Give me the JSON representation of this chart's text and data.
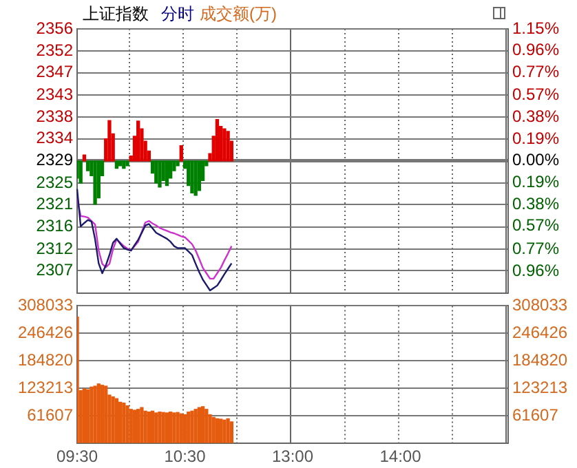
{
  "chart_data": [
    {
      "type": "line",
      "title": "上证指数",
      "subtitle": "分时",
      "annotations": [
        "成交额(万)"
      ],
      "marker": "none",
      "grid": true,
      "tick_labels": "y",
      "categories": [
        null,
        null,
        null,
        null,
        null,
        null,
        null,
        null,
        null,
        null,
        null,
        null,
        null,
        null,
        null,
        null,
        null,
        null,
        null,
        null,
        null,
        null,
        null,
        null,
        null,
        null,
        null,
        null,
        null,
        null,
        null,
        null,
        null,
        null,
        null,
        null,
        null,
        null,
        null,
        null,
        null,
        null,
        null,
        null,
        null,
        null,
        null,
        null,
        null,
        null,
        null,
        null,
        null,
        null,
        null,
        null,
        null,
        null,
        null,
        null,
        null,
        null,
        null,
        null,
        null,
        null,
        null,
        null,
        null,
        null,
        null,
        null,
        null,
        null,
        null,
        null,
        null,
        null,
        null,
        null,
        null,
        null,
        null,
        null,
        null,
        null,
        null,
        null,
        null,
        null,
        null,
        null,
        null,
        null,
        null,
        null,
        null,
        null,
        null,
        null,
        null,
        null,
        null,
        null,
        null,
        null,
        null,
        null,
        null,
        null,
        null,
        null,
        null,
        null,
        null,
        null,
        null,
        null,
        null,
        null,
        null
      ],
      "ylim": [
        2302.6,
        2356.2
      ],
      "yticks": [
        {
          "value": 2356.2,
          "label": "2356"
        },
        {
          "value": 2351.7,
          "label": "2352"
        },
        {
          "value": 2347.3,
          "label": "2347"
        },
        {
          "value": 2342.8,
          "label": "2343"
        },
        {
          "value": 2338.3,
          "label": "2338"
        },
        {
          "value": 2333.9,
          "label": "2334"
        },
        {
          "value": 2329.4,
          "label": "2329"
        },
        {
          "value": 2324.9,
          "label": "2325"
        },
        {
          "value": 2320.5,
          "label": "2321"
        },
        {
          "value": 2316.0,
          "label": "2316"
        },
        {
          "value": 2311.5,
          "label": "2312"
        },
        {
          "value": 2307.1,
          "label": "2307"
        }
      ],
      "y2lim": [
        -1.15,
        1.15
      ],
      "y2ticks": [
        {
          "value": 1.15,
          "label": "1.15%"
        },
        {
          "value": 0.96,
          "label": "0.96%"
        },
        {
          "value": 0.77,
          "label": "0.77%"
        },
        {
          "value": 0.57,
          "label": "0.57%"
        },
        {
          "value": 0.38,
          "label": "0.38%"
        },
        {
          "value": 0.19,
          "label": "0.19%"
        },
        {
          "value": 0,
          "label": "0.00%"
        },
        {
          "value": -0.19,
          "label": "0.19%"
        },
        {
          "value": -0.38,
          "label": "0.38%"
        },
        {
          "value": -0.57,
          "label": "0.57%"
        },
        {
          "value": -0.77,
          "label": "0.77%"
        },
        {
          "value": -0.96,
          "label": "0.96%"
        }
      ],
      "series": [
        {
          "type": "bar",
          "base": [
            2329.4,
            2329.4,
            2329.4,
            2329.4,
            2329.4,
            2329.4,
            2329.4,
            2329.4,
            2329.4,
            2329.4,
            2329.4,
            2329.4,
            2329.4,
            2329.4,
            2329.4,
            2329.4,
            2329.4,
            2329.4,
            2329.4,
            2329.4,
            2329.4,
            2329.4,
            2329.4,
            2329.4,
            2329.4,
            2329.4,
            2329.4,
            2329.4,
            2329.4,
            2329.4,
            2329.4,
            2329.4,
            2329.4,
            2329.4,
            2329.4,
            2329.4,
            2329.4,
            2329.4,
            2329.4,
            2329.4,
            2329.4,
            2329.4,
            2329.4,
            2329.4,
            null,
            null,
            null,
            null,
            null,
            null,
            null,
            null,
            null,
            null,
            null,
            null,
            null,
            null,
            null,
            null,
            null,
            null,
            null,
            null,
            null,
            null,
            null,
            null,
            null,
            null,
            null,
            null,
            null,
            null,
            null,
            null,
            null,
            null,
            null,
            null,
            null,
            null,
            null,
            null,
            null,
            null,
            null,
            null,
            null,
            null,
            null,
            null,
            null,
            null,
            null,
            null,
            null,
            null,
            null,
            null,
            null,
            null,
            null,
            null,
            null,
            null,
            null,
            null,
            null,
            null,
            null,
            null,
            null,
            null,
            null,
            null,
            null,
            null,
            null,
            null,
            null
          ],
          "values": [
            -3.5,
            -4.5,
            1.2,
            -2.0,
            -3.0,
            -8.8,
            -7.5,
            -3.0,
            4.5,
            8.2,
            5.5,
            -1.5,
            -1.0,
            -1.5,
            -1.0,
            1.0,
            5.0,
            8.1,
            6.5,
            4.0,
            2.0,
            -2.5,
            -4.5,
            -5.3,
            -4.0,
            -5.0,
            -3.5,
            -2.0,
            -1.0,
            3.1,
            -1.5,
            -5.0,
            -6.5,
            -7.0,
            -6.0,
            -4.0,
            -1.0,
            1.5,
            5.0,
            8.4,
            7.0,
            6.5,
            6.0,
            4.0,
            null,
            null,
            null,
            null,
            null,
            null,
            null,
            null,
            null,
            null,
            null,
            null,
            null,
            null,
            null,
            null,
            null,
            null,
            null,
            null,
            null,
            null,
            null,
            null,
            null,
            null,
            null,
            null,
            null,
            null,
            null,
            null,
            null,
            null,
            null,
            null,
            null,
            null,
            null,
            null,
            null,
            null,
            null,
            null,
            null,
            null,
            null,
            null,
            null,
            null,
            null,
            null,
            null,
            null,
            null,
            null,
            null,
            null,
            null,
            null,
            null,
            null,
            null,
            null,
            null,
            null,
            null,
            null,
            null,
            null,
            null,
            null,
            null,
            null,
            null,
            null,
            null
          ],
          "colors": [
            "#008000",
            "#008000",
            "#e00000",
            "#008000",
            "#008000",
            "#008000",
            "#008000",
            "#008000",
            "#e00000",
            "#e00000",
            "#e00000",
            "#008000",
            "#008000",
            "#008000",
            "#008000",
            "#e00000",
            "#e00000",
            "#e00000",
            "#e00000",
            "#e00000",
            "#e00000",
            "#008000",
            "#008000",
            "#008000",
            "#008000",
            "#008000",
            "#008000",
            "#008000",
            "#008000",
            "#e00000",
            "#008000",
            "#008000",
            "#008000",
            "#008000",
            "#008000",
            "#008000",
            "#008000",
            "#e00000",
            "#e00000",
            "#e00000",
            "#e00000",
            "#e00000",
            "#e00000",
            "#e00000",
            null,
            null,
            null,
            null,
            null,
            null,
            null,
            null,
            null,
            null,
            null,
            null,
            null,
            null,
            null,
            null,
            null,
            null,
            null,
            null,
            null,
            null,
            null,
            null,
            null,
            null,
            null,
            null,
            null,
            null,
            null,
            null,
            null,
            null,
            null,
            null,
            null,
            null,
            null,
            null,
            null,
            null,
            null,
            null,
            null,
            null,
            null,
            null,
            null,
            null,
            null,
            null,
            null,
            null,
            null,
            null,
            null,
            null,
            null,
            null,
            null,
            null,
            null,
            null,
            null,
            null,
            null,
            null,
            null,
            null,
            null,
            null,
            null,
            null,
            null,
            null,
            null
          ]
        },
        {
          "type": "line",
          "color": "#1b1b6b",
          "values": [
            2323.7,
            2316.1,
            2316.8,
            2317.4,
            2317.1,
            2313.5,
            2308.6,
            2306.6,
            2308.2,
            2310.3,
            2312.8,
            2313.6,
            2312.6,
            2311.7,
            2311.4,
            2311.2,
            2312.3,
            2313.4,
            2314.8,
            2316.3,
            2316.6,
            2315.7,
            2314.8,
            2314.4,
            2314.0,
            2313.6,
            2313.0,
            2312.1,
            2311.7,
            2311.7,
            2311.7,
            2311.0,
            2310.3,
            2308.5,
            2306.8,
            2305.3,
            2304.2,
            2303.1,
            2303.6,
            2304.1,
            2305.2,
            2306.4,
            2307.5,
            2308.6,
            null,
            null,
            null,
            null,
            null,
            null,
            null,
            null,
            null,
            null,
            null,
            null,
            null,
            null,
            null,
            null,
            null,
            null,
            null,
            null,
            null,
            null,
            null,
            null,
            null,
            null,
            null,
            null,
            null,
            null,
            null,
            null,
            null,
            null,
            null,
            null,
            null,
            null,
            null,
            null,
            null,
            null,
            null,
            null,
            null,
            null,
            null,
            null,
            null,
            null,
            null,
            null,
            null,
            null,
            null,
            null,
            null,
            null,
            null,
            null,
            null,
            null,
            null,
            null,
            null,
            null,
            null,
            null,
            null,
            null,
            null,
            null,
            null,
            null,
            null,
            null,
            null
          ]
        },
        {
          "type": "line",
          "color": "#cc33cc",
          "values": [
            2321.7,
            2318.2,
            2318.1,
            2317.9,
            2317.2,
            2316.5,
            2311.2,
            2308.5,
            2307.8,
            2308.5,
            2311.5,
            2313.5,
            2312.8,
            2312.1,
            2311.6,
            2311.2,
            2312.1,
            2313.0,
            2315.0,
            2316.9,
            2317.2,
            2316.7,
            2316.3,
            2315.8,
            2315.5,
            2315.2,
            2314.9,
            2314.7,
            2314.4,
            2314.1,
            2313.9,
            2313.2,
            2312.5,
            2311.2,
            2309.5,
            2307.7,
            2306.6,
            2305.5,
            2305.5,
            2306.6,
            2307.7,
            2309.2,
            2310.6,
            2312.1,
            null,
            null,
            null,
            null,
            null,
            null,
            null,
            null,
            null,
            null,
            null,
            null,
            null,
            null,
            null,
            null,
            null,
            null,
            null,
            null,
            null,
            null,
            null,
            null,
            null,
            null,
            null,
            null,
            null,
            null,
            null,
            null,
            null,
            null,
            null,
            null,
            null,
            null,
            null,
            null,
            null,
            null,
            null,
            null,
            null,
            null,
            null,
            null,
            null,
            null,
            null,
            null,
            null,
            null,
            null,
            null,
            null,
            null,
            null,
            null,
            null,
            null,
            null,
            null,
            null,
            null,
            null,
            null,
            null,
            null,
            null,
            null,
            null,
            null,
            null,
            null,
            null
          ]
        }
      ]
    },
    {
      "type": "bar",
      "grid": true,
      "categories": [
        "09:30",
        null,
        null,
        null,
        null,
        null,
        null,
        null,
        null,
        null,
        null,
        null,
        null,
        null,
        null,
        null,
        null,
        null,
        null,
        null,
        null,
        null,
        null,
        null,
        null,
        null,
        null,
        null,
        null,
        null,
        "10:30",
        null,
        null,
        null,
        null,
        null,
        null,
        null,
        null,
        null,
        null,
        null,
        null,
        null,
        null,
        null,
        null,
        null,
        null,
        null,
        null,
        null,
        null,
        null,
        null,
        null,
        null,
        null,
        null,
        null,
        "13:00",
        null,
        null,
        null,
        null,
        null,
        null,
        null,
        null,
        null,
        null,
        null,
        null,
        null,
        null,
        null,
        null,
        null,
        null,
        null,
        null,
        null,
        null,
        null,
        null,
        null,
        null,
        null,
        null,
        null,
        "14:00",
        null,
        null,
        null,
        null,
        null,
        null,
        null,
        null,
        null,
        null,
        null,
        null,
        null,
        null,
        null,
        null,
        null,
        null,
        null,
        null,
        null,
        null,
        null,
        null,
        null,
        null,
        null,
        null,
        null,
        null
      ],
      "ylim": [
        0,
        308033
      ],
      "yticks": [
        {
          "value": 0,
          "label": null
        },
        61607,
        123213,
        184820,
        246426,
        308033
      ],
      "y2lim": [
        0,
        308033
      ],
      "y2ticks": [
        {
          "value": 0,
          "label": null
        },
        61607,
        123213,
        184820,
        246426,
        308033
      ],
      "series": [
        {
          "color": "#e65c0f",
          "values": [
            283000,
            118000,
            122000,
            120000,
            126000,
            128000,
            133000,
            130000,
            128000,
            108000,
            104000,
            100000,
            92000,
            90000,
            84000,
            76000,
            74000,
            76000,
            80000,
            72000,
            70000,
            72000,
            68000,
            70000,
            69000,
            68000,
            70000,
            68000,
            69000,
            66000,
            64000,
            70000,
            72000,
            76000,
            80000,
            82000,
            76000,
            64000,
            58000,
            55000,
            54000,
            52000,
            55000,
            48000,
            null,
            null,
            null,
            null,
            null,
            null,
            null,
            null,
            null,
            null,
            null,
            null,
            null,
            null,
            null,
            null,
            null,
            null,
            null,
            null,
            null,
            null,
            null,
            null,
            null,
            null,
            null,
            null,
            null,
            null,
            null,
            null,
            null,
            null,
            null,
            null,
            null,
            null,
            null,
            null,
            null,
            null,
            null,
            null,
            null,
            null,
            null,
            null,
            null,
            null,
            null,
            null,
            null,
            null,
            null,
            null,
            null,
            null,
            null,
            null,
            null,
            null,
            null,
            null,
            null,
            null,
            null,
            null,
            null,
            null,
            null,
            null,
            null,
            null,
            null,
            null,
            null
          ]
        }
      ]
    }
  ]
}
